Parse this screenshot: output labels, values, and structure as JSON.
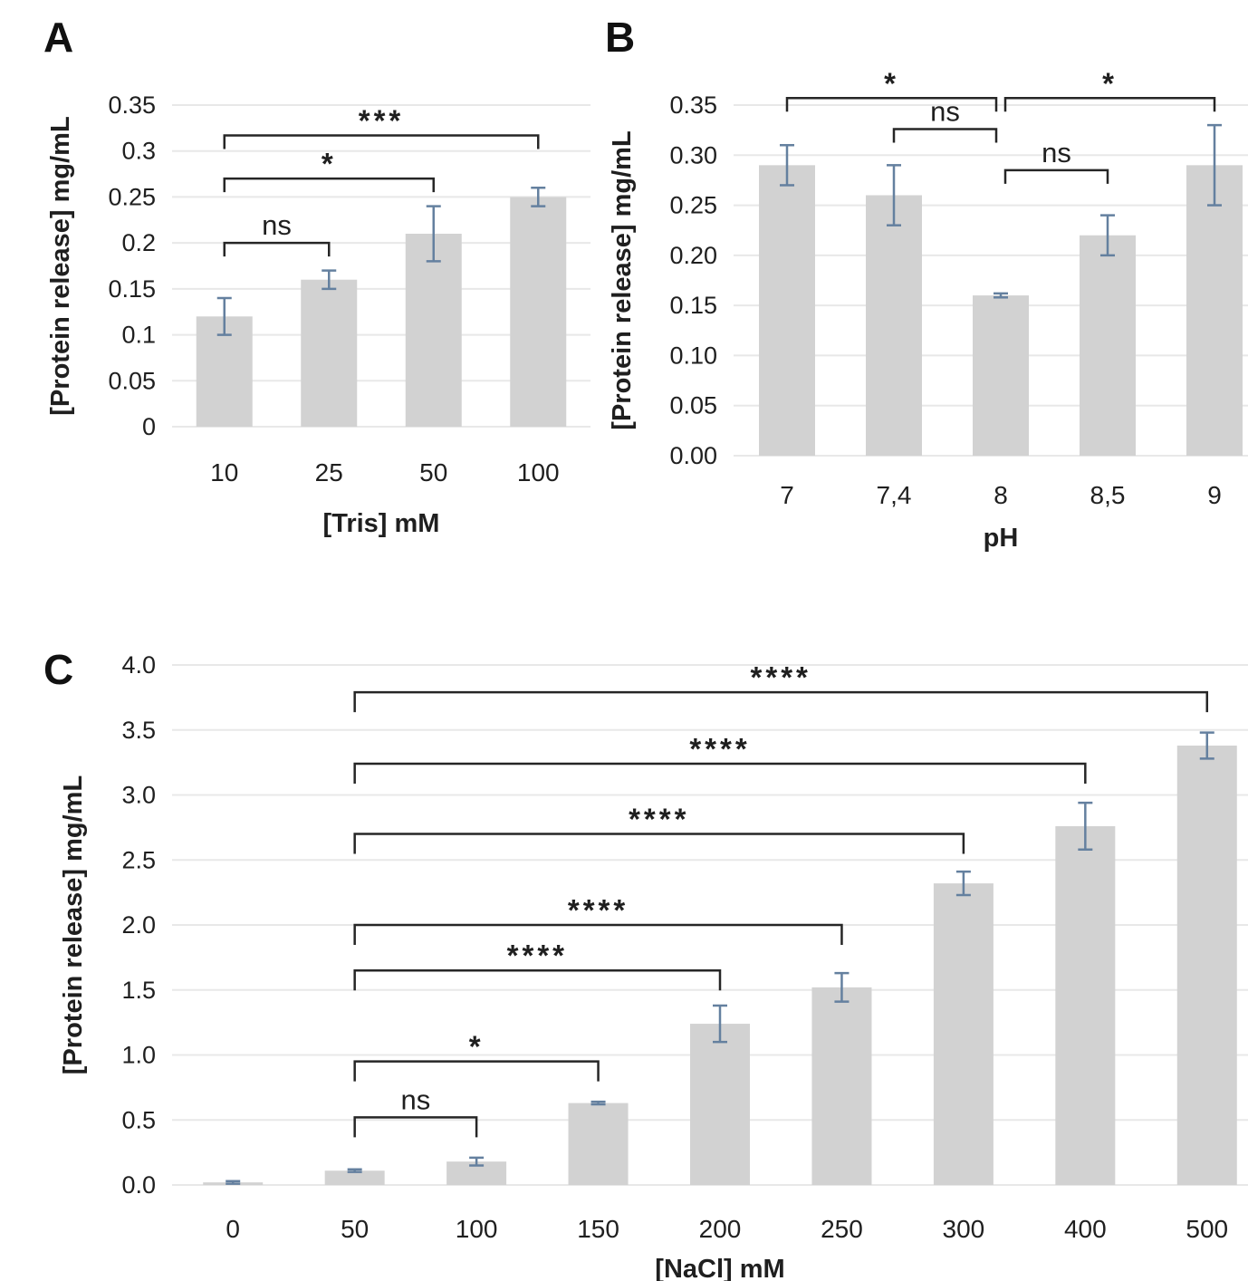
{
  "figure": {
    "title": "Protein release bar charts figure",
    "colors": {
      "bar_fill": "#d2d2d2",
      "error_bar": "#64809f",
      "gridline": "#e8e8e8",
      "bracket": "#262626",
      "text": "#1f1f1f"
    }
  },
  "chart_data": [
    {
      "panel_label": "A",
      "type": "bar",
      "title": "",
      "xlabel": "[Tris] mM",
      "ylabel": "[Protein release] mg/mL",
      "categories": [
        "10",
        "25",
        "50",
        "100"
      ],
      "values": [
        0.12,
        0.16,
        0.21,
        0.25
      ],
      "errors": [
        0.02,
        0.01,
        0.03,
        0.01
      ],
      "ylim": [
        0,
        0.35
      ],
      "ytick_values": [
        0,
        0.05,
        0.1,
        0.15,
        0.2,
        0.25,
        0.3,
        0.35
      ],
      "ytick_labels": [
        "0",
        "0.05",
        "0.1",
        "0.15",
        "0.2",
        "0.25",
        "0.3",
        "0.35"
      ],
      "grid": true,
      "legend": false,
      "significance": [
        {
          "i": 0,
          "j": 1,
          "label": "ns",
          "y": 0.2
        },
        {
          "i": 0,
          "j": 2,
          "label": "*",
          "y": 0.27
        },
        {
          "i": 0,
          "j": 3,
          "label": "***",
          "y": 0.317
        }
      ]
    },
    {
      "panel_label": "B",
      "type": "bar",
      "title": "",
      "xlabel": "pH",
      "ylabel": "[Protein release] mg/mL",
      "categories": [
        "7",
        "7,4",
        "8",
        "8,5",
        "9"
      ],
      "values": [
        0.29,
        0.26,
        0.16,
        0.22,
        0.29
      ],
      "errors": [
        0.02,
        0.03,
        0.002,
        0.02,
        0.04
      ],
      "ylim": [
        0,
        0.35
      ],
      "ytick_values": [
        0,
        0.05,
        0.1,
        0.15,
        0.2,
        0.25,
        0.3,
        0.35
      ],
      "ytick_labels": [
        "0.00",
        "0.05",
        "0.10",
        "0.15",
        "0.20",
        "0.25",
        "0.30",
        "0.35"
      ],
      "grid": true,
      "legend": false,
      "significance": [
        {
          "i": 0,
          "j": 2,
          "label": "*",
          "y": 0.357,
          "x2dx": -5
        },
        {
          "i": 1,
          "j": 2,
          "label": "ns",
          "y": 0.326,
          "x2dx": -5
        },
        {
          "i": 2,
          "j": 3,
          "label": "ns",
          "y": 0.285,
          "x1dx": 5
        },
        {
          "i": 2,
          "j": 4,
          "label": "*",
          "y": 0.357,
          "x1dx": 5
        }
      ]
    },
    {
      "panel_label": "C",
      "type": "bar",
      "title": "",
      "xlabel": "[NaCl] mM",
      "ylabel": "[Protein release] mg/mL",
      "categories": [
        "0",
        "50",
        "100",
        "150",
        "200",
        "250",
        "300",
        "400",
        "500"
      ],
      "values": [
        0.02,
        0.11,
        0.18,
        0.63,
        1.24,
        1.52,
        2.32,
        2.76,
        3.38
      ],
      "errors": [
        0.01,
        0.01,
        0.03,
        0.01,
        0.14,
        0.11,
        0.09,
        0.18,
        0.1
      ],
      "ylim": [
        0,
        4.0
      ],
      "ytick_values": [
        0,
        0.5,
        1.0,
        1.5,
        2.0,
        2.5,
        3.0,
        3.5,
        4.0
      ],
      "ytick_labels": [
        "0.0",
        "0.5",
        "1.0",
        "1.5",
        "2.0",
        "2.5",
        "3.0",
        "3.5",
        "4.0"
      ],
      "grid": true,
      "legend": false,
      "significance": [
        {
          "i": 1,
          "j": 2,
          "label": "ns",
          "y": 0.52
        },
        {
          "i": 1,
          "j": 3,
          "label": "*",
          "y": 0.95
        },
        {
          "i": 1,
          "j": 4,
          "label": "****",
          "y": 1.65
        },
        {
          "i": 1,
          "j": 5,
          "label": "****",
          "y": 2.0
        },
        {
          "i": 1,
          "j": 6,
          "label": "****",
          "y": 2.7
        },
        {
          "i": 1,
          "j": 7,
          "label": "****",
          "y": 3.24
        },
        {
          "i": 1,
          "j": 8,
          "label": "****",
          "y": 3.79
        }
      ]
    }
  ]
}
